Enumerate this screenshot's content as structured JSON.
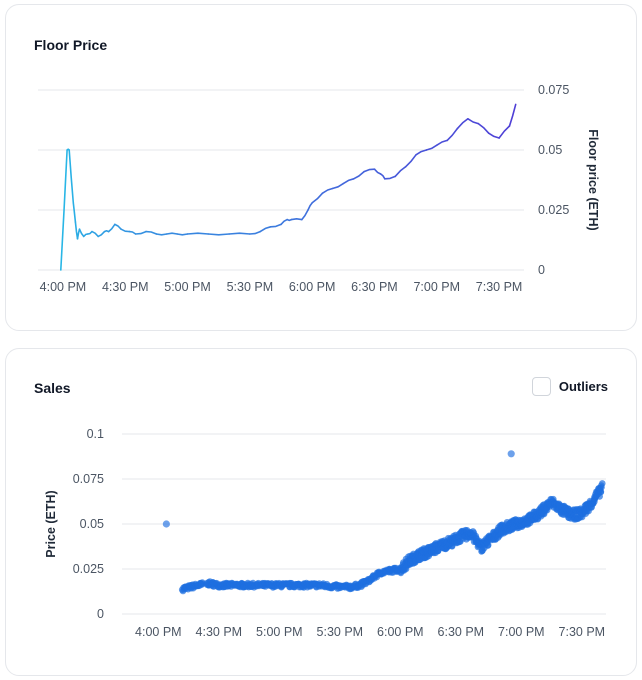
{
  "floor_card": {
    "title": "Floor Price"
  },
  "sales_card": {
    "title": "Sales",
    "outliers_label": "Outliers",
    "outliers_checked": false
  },
  "colors": {
    "floor_start": "#29b6e6",
    "floor_end": "#4f3fd6",
    "sales_point": "#1e6fe0"
  },
  "chart_data": [
    {
      "type": "line",
      "title": "Floor Price",
      "ylabel": "Floor price (ETH)",
      "xlabel": "",
      "ylim": [
        0,
        0.075
      ],
      "xlim": [
        "3:48 PM",
        "7:42 PM"
      ],
      "yticks": [
        "0",
        "0.025",
        "0.05",
        "0.075"
      ],
      "xticks": [
        "4:00 PM",
        "4:30 PM",
        "5:00 PM",
        "5:30 PM",
        "6:00 PM",
        "6:30 PM",
        "7:00 PM",
        "7:30 PM"
      ],
      "grid": true,
      "y_axis_side": "right",
      "series": [
        {
          "name": "Floor price",
          "x": [
            "3:59 PM",
            "4:02 PM",
            "4:03 PM",
            "4:05 PM",
            "4:06 PM",
            "4:07 PM",
            "4:08 PM",
            "4:10 PM",
            "4:12 PM",
            "4:14 PM",
            "4:17 PM",
            "4:20 PM",
            "4:22 PM",
            "4:25 PM",
            "4:28 PM",
            "4:32 PM",
            "4:35 PM",
            "4:40 PM",
            "4:45 PM",
            "4:50 PM",
            "4:55 PM",
            "5:00 PM",
            "5:10 PM",
            "5:20 PM",
            "5:30 PM",
            "5:35 PM",
            "5:40 PM",
            "5:45 PM",
            "5:48 PM",
            "5:50 PM",
            "5:55 PM",
            "5:58 PM",
            "6:00 PM",
            "6:05 PM",
            "6:10 PM",
            "6:15 PM",
            "6:20 PM",
            "6:25 PM",
            "6:30 PM",
            "6:33 PM",
            "6:35 PM",
            "6:40 PM",
            "6:45 PM",
            "6:50 PM",
            "6:55 PM",
            "7:00 PM",
            "7:05 PM",
            "7:10 PM",
            "7:15 PM",
            "7:20 PM",
            "7:25 PM",
            "7:30 PM",
            "7:35 PM",
            "7:38 PM"
          ],
          "y": [
            0.0,
            0.05,
            0.05,
            0.028,
            0.02,
            0.013,
            0.017,
            0.014,
            0.015,
            0.016,
            0.014,
            0.016,
            0.016,
            0.019,
            0.017,
            0.016,
            0.015,
            0.016,
            0.015,
            0.015,
            0.015,
            0.015,
            0.015,
            0.015,
            0.015,
            0.016,
            0.018,
            0.019,
            0.021,
            0.021,
            0.021,
            0.025,
            0.028,
            0.032,
            0.034,
            0.036,
            0.038,
            0.041,
            0.042,
            0.04,
            0.038,
            0.039,
            0.043,
            0.048,
            0.05,
            0.052,
            0.054,
            0.059,
            0.063,
            0.061,
            0.057,
            0.055,
            0.06,
            0.069
          ]
        }
      ]
    },
    {
      "type": "scatter",
      "title": "Sales",
      "ylabel": "Price (ETH)",
      "xlabel": "",
      "ylim": [
        0,
        0.1
      ],
      "xlim": [
        "3:42 PM",
        "7:42 PM"
      ],
      "yticks": [
        "0",
        "0.025",
        "0.05",
        "0.075",
        "0.1"
      ],
      "xticks": [
        "4:00 PM",
        "4:30 PM",
        "5:00 PM",
        "5:30 PM",
        "6:00 PM",
        "6:30 PM",
        "7:00 PM",
        "7:30 PM"
      ],
      "grid": true,
      "y_axis_side": "left",
      "outliers": [
        {
          "x": "4:04 PM",
          "y": 0.05
        },
        {
          "x": "6:55 PM",
          "y": 0.089
        }
      ],
      "trend": {
        "x": [
          "4:12 PM",
          "4:20 PM",
          "4:25 PM",
          "4:30 PM",
          "4:40 PM",
          "4:50 PM",
          "5:00 PM",
          "5:10 PM",
          "5:20 PM",
          "5:30 PM",
          "5:35 PM",
          "5:40 PM",
          "5:45 PM",
          "5:50 PM",
          "5:55 PM",
          "6:00 PM",
          "6:05 PM",
          "6:10 PM",
          "6:15 PM",
          "6:20 PM",
          "6:25 PM",
          "6:30 PM",
          "6:35 PM",
          "6:40 PM",
          "6:45 PM",
          "6:50 PM",
          "6:55 PM",
          "7:00 PM",
          "7:05 PM",
          "7:10 PM",
          "7:15 PM",
          "7:20 PM",
          "7:25 PM",
          "7:30 PM",
          "7:35 PM",
          "7:40 PM"
        ],
        "y": [
          0.014,
          0.016,
          0.017,
          0.016,
          0.016,
          0.016,
          0.016,
          0.016,
          0.016,
          0.015,
          0.015,
          0.016,
          0.019,
          0.023,
          0.024,
          0.025,
          0.03,
          0.033,
          0.035,
          0.038,
          0.04,
          0.043,
          0.045,
          0.037,
          0.042,
          0.047,
          0.049,
          0.051,
          0.053,
          0.057,
          0.062,
          0.058,
          0.055,
          0.056,
          0.062,
          0.07
        ]
      }
    }
  ]
}
